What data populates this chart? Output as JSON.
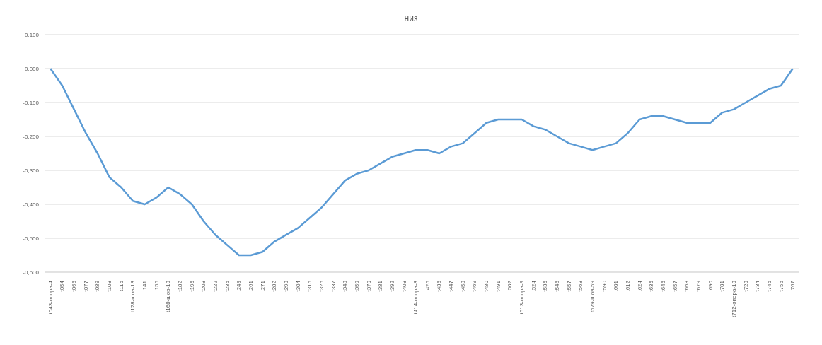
{
  "chart_data": {
    "type": "line",
    "title": "низ",
    "categories": [
      "t043-опора-4",
      "t054",
      "t066",
      "t077",
      "t089",
      "t103",
      "t115",
      "t128-шов-13",
      "t141",
      "t155",
      "t168-шов-13",
      "t182",
      "t195",
      "t208",
      "t222",
      "t235",
      "t249",
      "t261",
      "t271",
      "t282",
      "t293",
      "t304",
      "t315",
      "t326",
      "t337",
      "t348",
      "t359",
      "t370",
      "t381",
      "t392",
      "t403",
      "t414-опора-8",
      "t425",
      "t436",
      "t447",
      "t458",
      "t469",
      "t480",
      "t491",
      "t502",
      "t513-опора-9",
      "t524",
      "t535",
      "t546",
      "t557",
      "t568",
      "t579-шов-59",
      "t590",
      "t601",
      "t612",
      "t624",
      "t635",
      "t646",
      "t657",
      "t668",
      "t679",
      "t690",
      "t701",
      "t712-опора-13",
      "t723",
      "t734",
      "t745",
      "t756",
      "t767"
    ],
    "series": [
      {
        "color": "#5b9bd5",
        "values": [
          0,
          -0.05,
          -0.12,
          -0.19,
          -0.25,
          -0.32,
          -0.35,
          -0.39,
          -0.4,
          -0.38,
          -0.35,
          -0.37,
          -0.4,
          -0.45,
          -0.49,
          -0.52,
          -0.55,
          -0.55,
          -0.54,
          -0.51,
          -0.49,
          -0.47,
          -0.44,
          -0.41,
          -0.37,
          -0.33,
          -0.31,
          -0.3,
          -0.28,
          -0.26,
          -0.25,
          -0.24,
          -0.24,
          -0.25,
          -0.23,
          -0.22,
          -0.19,
          -0.16,
          -0.15,
          -0.15,
          -0.15,
          -0.17,
          -0.18,
          -0.2,
          -0.22,
          -0.23,
          -0.24,
          -0.23,
          -0.22,
          -0.19,
          -0.15,
          -0.14,
          -0.14,
          -0.15,
          -0.16,
          -0.16,
          -0.16,
          -0.13,
          -0.12,
          -0.1,
          -0.08,
          -0.06,
          -0.05,
          0
        ]
      }
    ],
    "ylim": [
      -0.6,
      0.1
    ],
    "yticks": [
      {
        "value": 0.1,
        "label": "0,100"
      },
      {
        "value": 0,
        "label": "0,000"
      },
      {
        "value": -0.1,
        "label": "-0,100"
      },
      {
        "value": -0.2,
        "label": "-0,200"
      },
      {
        "value": -0.3,
        "label": "-0,300"
      },
      {
        "value": -0.4,
        "label": "-0,400"
      },
      {
        "value": -0.5,
        "label": "-0,500"
      },
      {
        "value": -0.6,
        "label": "-0,600"
      }
    ],
    "grid": "y",
    "marker": "none",
    "line_style": "solid",
    "legend": false
  }
}
